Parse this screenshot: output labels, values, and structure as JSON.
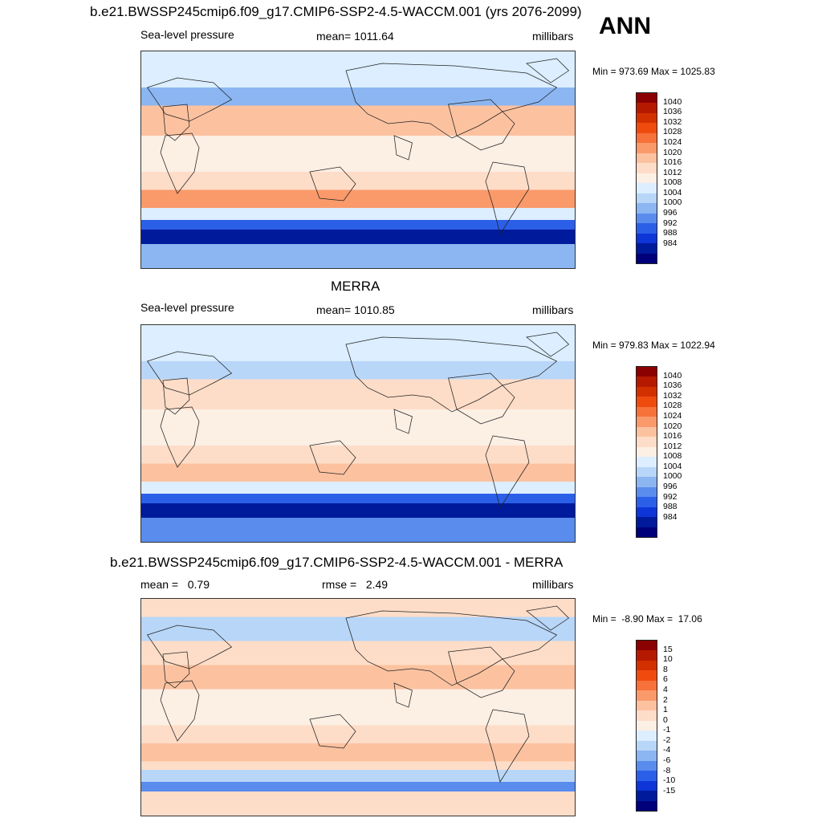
{
  "season": "ANN",
  "panels": [
    {
      "title": "b.e21.BWSSP245cmip6.f09_g17.CMIP6-SSP2-4.5-WACCM.001 (yrs 2076-2099)",
      "left_label": "Sea-level pressure",
      "center_label": "mean= 1011.64",
      "units": "millibars",
      "minmax": "Min = 973.69 Max = 1025.83",
      "colorbar": {
        "labels": [
          "1040",
          "1036",
          "1032",
          "1028",
          "1024",
          "1020",
          "1016",
          "1012",
          "1008",
          "1004",
          "1000",
          "996",
          "992",
          "988",
          "984"
        ],
        "colors": [
          "#8b0000",
          "#b51a00",
          "#d33000",
          "#f04b0f",
          "#f7713a",
          "#fa9a6a",
          "#fcc2a0",
          "#feddc8",
          "#fcefe4",
          "#dceeff",
          "#b8d6f8",
          "#8bb6f2",
          "#5a8ced",
          "#2c5fe8",
          "#0d35d8",
          "#001a9c",
          "#00007a"
        ],
        "bands": [
          {
            "lat_range": [
              90,
              60
            ],
            "level": "1008"
          },
          {
            "lat_range": [
              60,
              45
            ],
            "level": "1000"
          },
          {
            "lat_range": [
              45,
              20
            ],
            "level": "1020"
          },
          {
            "lat_range": [
              20,
              -10
            ],
            "level": "1012"
          },
          {
            "lat_range": [
              -10,
              -25
            ],
            "level": "1016"
          },
          {
            "lat_range": [
              -25,
              -40
            ],
            "level": "1024"
          },
          {
            "lat_range": [
              -40,
              -50
            ],
            "level": "1008"
          },
          {
            "lat_range": [
              -50,
              -58
            ],
            "level": "992"
          },
          {
            "lat_range": [
              -58,
              -70
            ],
            "level": "984"
          },
          {
            "lat_range": [
              -70,
              -90
            ],
            "level": "1000"
          }
        ]
      }
    },
    {
      "title": "MERRA",
      "left_label": "Sea-level pressure",
      "center_label": "mean= 1010.85",
      "units": "millibars",
      "minmax": "Min = 979.83 Max = 1022.94",
      "colorbar": {
        "labels": [
          "1040",
          "1036",
          "1032",
          "1028",
          "1024",
          "1020",
          "1016",
          "1012",
          "1008",
          "1004",
          "1000",
          "996",
          "992",
          "988",
          "984"
        ],
        "colors": [
          "#8b0000",
          "#b51a00",
          "#d33000",
          "#f04b0f",
          "#f7713a",
          "#fa9a6a",
          "#fcc2a0",
          "#feddc8",
          "#fcefe4",
          "#dceeff",
          "#b8d6f8",
          "#8bb6f2",
          "#5a8ced",
          "#2c5fe8",
          "#0d35d8",
          "#001a9c",
          "#00007a"
        ],
        "bands": [
          {
            "lat_range": [
              90,
              60
            ],
            "level": "1008"
          },
          {
            "lat_range": [
              60,
              45
            ],
            "level": "1004"
          },
          {
            "lat_range": [
              45,
              20
            ],
            "level": "1016"
          },
          {
            "lat_range": [
              20,
              -10
            ],
            "level": "1012"
          },
          {
            "lat_range": [
              -10,
              -25
            ],
            "level": "1016"
          },
          {
            "lat_range": [
              -25,
              -40
            ],
            "level": "1020"
          },
          {
            "lat_range": [
              -40,
              -50
            ],
            "level": "1008"
          },
          {
            "lat_range": [
              -50,
              -58
            ],
            "level": "992"
          },
          {
            "lat_range": [
              -58,
              -70
            ],
            "level": "984"
          },
          {
            "lat_range": [
              -70,
              -90
            ],
            "level": "996"
          }
        ]
      }
    },
    {
      "title": "b.e21.BWSSP245cmip6.f09_g17.CMIP6-SSP2-4.5-WACCM.001 - MERRA",
      "left_label": "mean =   0.79",
      "center_label": "rmse =   2.49",
      "units": "millibars",
      "minmax": "Min =  -8.90 Max =  17.06",
      "colorbar": {
        "labels": [
          "15",
          "10",
          "8",
          "6",
          "4",
          "2",
          "1",
          "0",
          "-1",
          "-2",
          "-4",
          "-6",
          "-8",
          "-10",
          "-15"
        ],
        "colors": [
          "#8b0000",
          "#b51a00",
          "#d33000",
          "#f04b0f",
          "#f7713a",
          "#fa9a6a",
          "#fcc2a0",
          "#feddc8",
          "#fcefe4",
          "#dceeff",
          "#b8d6f8",
          "#8bb6f2",
          "#5a8ced",
          "#2c5fe8",
          "#0d35d8",
          "#001a9c",
          "#00007a"
        ],
        "bands": [
          {
            "lat_range": [
              90,
              75
            ],
            "level": "1"
          },
          {
            "lat_range": [
              75,
              55
            ],
            "level": "-2"
          },
          {
            "lat_range": [
              55,
              35
            ],
            "level": "1"
          },
          {
            "lat_range": [
              35,
              15
            ],
            "level": "2"
          },
          {
            "lat_range": [
              15,
              -15
            ],
            "level": "0"
          },
          {
            "lat_range": [
              -15,
              -30
            ],
            "level": "1"
          },
          {
            "lat_range": [
              -30,
              -45
            ],
            "level": "2"
          },
          {
            "lat_range": [
              -45,
              -52
            ],
            "level": "1"
          },
          {
            "lat_range": [
              -52,
              -62
            ],
            "level": "-2"
          },
          {
            "lat_range": [
              -62,
              -70
            ],
            "level": "-6"
          },
          {
            "lat_range": [
              -70,
              -90
            ],
            "level": "1"
          }
        ]
      }
    }
  ]
}
